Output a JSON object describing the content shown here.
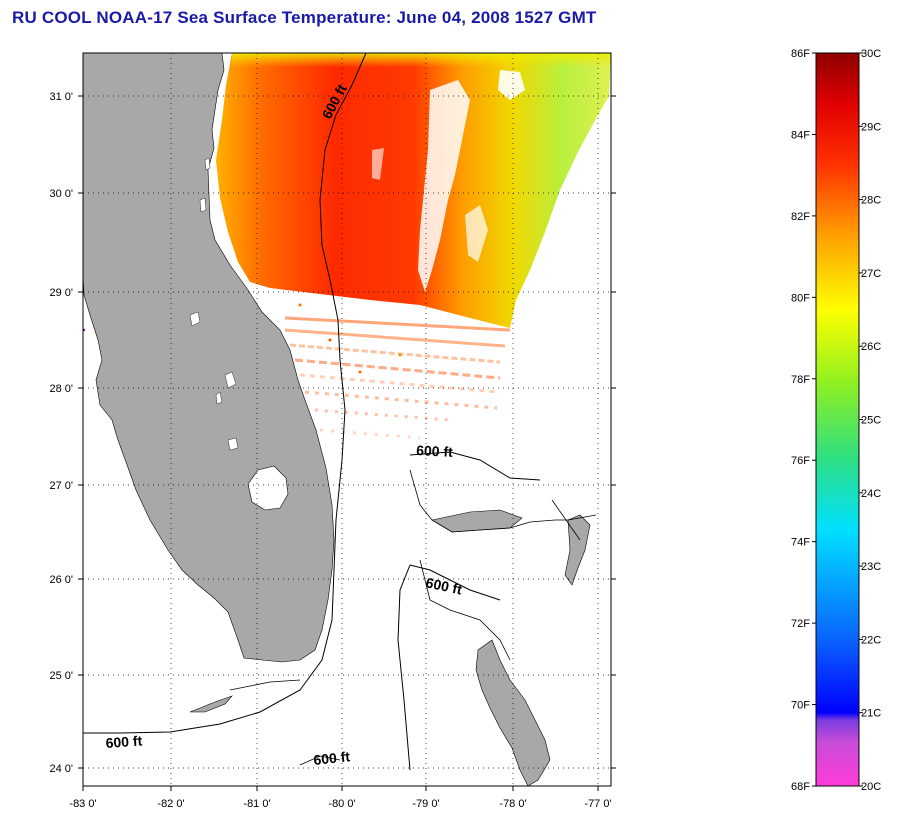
{
  "title": "RU COOL  NOAA-17  Sea Surface Temperature:  June 04, 2008 1527 GMT",
  "map": {
    "lon_labels": [
      "-83 0'",
      "-82 0'",
      "-81 0'",
      "-80 0'",
      "-79 0'",
      "-78 0'",
      "-77 0'"
    ],
    "lat_labels": [
      "31 0'",
      "30 0'",
      "29 0'",
      "28 0'",
      "27 0'",
      "26 0'",
      "25 0'",
      "24 0'"
    ],
    "contour_label": "600 ft",
    "land_color": "#a8a8a8",
    "water_color": "#ffffff"
  },
  "colorbar": {
    "fahrenheit_labels": [
      "86F",
      "84F",
      "82F",
      "80F",
      "78F",
      "76F",
      "74F",
      "72F",
      "70F",
      "68F"
    ],
    "celsius_labels": [
      "30C",
      "29C",
      "28C",
      "27C",
      "26C",
      "25C",
      "24C",
      "23C",
      "22C",
      "21C",
      "20C"
    ],
    "range_celsius": [
      20,
      30
    ],
    "colors": [
      "#ff3cd8",
      "#c84cd8",
      "#8840e0",
      "#0000ff",
      "#0a64ff",
      "#00c8ff",
      "#00ffd8",
      "#40e060",
      "#a0f020",
      "#ffff00",
      "#ffb000",
      "#ff6000",
      "#ff1a00",
      "#a00000"
    ]
  }
}
